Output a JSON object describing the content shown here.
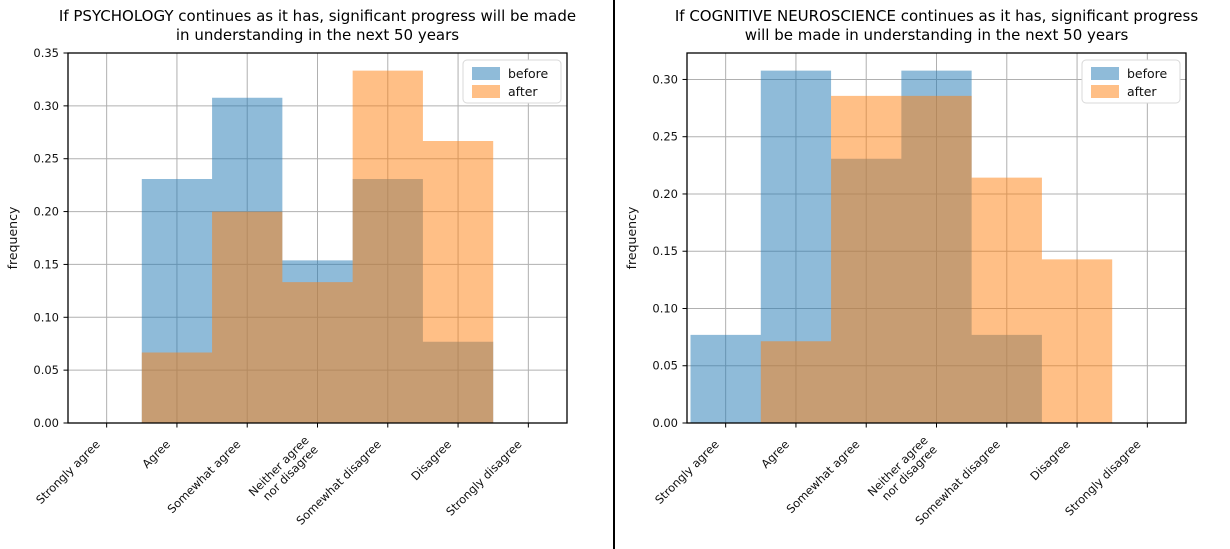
{
  "figure": {
    "background": "#ffffff",
    "divider_color": "#000000",
    "grid_color": "#b0b0b0",
    "frame_color": "#000000",
    "legend_border_color": "#d8d8d8"
  },
  "chart_data": [
    {
      "type": "histogram",
      "title": "If PSYCHOLOGY continues as it has, significant progress will be made in understanding in the next 50 years",
      "title_lines": [
        "If PSYCHOLOGY continues as it has, significant progress will be made",
        "in understanding in the next 50 years"
      ],
      "ylabel": "frequency",
      "xlabel": "",
      "categories": [
        "Strongly agree",
        "Agree",
        "Somewhat agree",
        "Neither agree\nnor disagree",
        "Somewhat disagree",
        "Disagree",
        "Strongly disagree"
      ],
      "series": [
        {
          "name": "before",
          "color": "#1f77b4",
          "fill_alpha": 0.5,
          "values": [
            0,
            0.2308,
            0.3077,
            0.1538,
            0.2308,
            0.0769,
            0
          ]
        },
        {
          "name": "after",
          "color": "#ff7f0e",
          "fill_alpha": 0.5,
          "values": [
            0,
            0.0667,
            0.2,
            0.1333,
            0.3333,
            0.2667,
            0
          ]
        }
      ],
      "ylim": [
        0,
        0.35
      ],
      "yticks": [
        "0.00",
        "0.05",
        "0.10",
        "0.15",
        "0.20",
        "0.25",
        "0.30",
        "0.35"
      ],
      "x_tick_rotation": 45,
      "grid": true,
      "legend": {
        "position": "upper right",
        "entries": [
          "before",
          "after"
        ]
      }
    },
    {
      "type": "histogram",
      "title": "If COGNITIVE NEUROSCIENCE continues as it has, significant progress will be made in understanding in the next 50 years",
      "title_lines": [
        "If COGNITIVE NEUROSCIENCE continues as it has, significant progress",
        "will be made in understanding in the next 50 years"
      ],
      "ylabel": "frequency",
      "xlabel": "",
      "categories": [
        "Strongly agree",
        "Agree",
        "Somewhat agree",
        "Neither agree\nnor disagree",
        "Somewhat disagree",
        "Disagree",
        "Strongly disagree"
      ],
      "series": [
        {
          "name": "before",
          "color": "#1f77b4",
          "fill_alpha": 0.5,
          "values": [
            0.0769,
            0.3077,
            0.2308,
            0.3077,
            0.0769,
            0,
            0
          ]
        },
        {
          "name": "after",
          "color": "#ff7f0e",
          "fill_alpha": 0.5,
          "values": [
            0,
            0.0714,
            0.2857,
            0.2857,
            0.2143,
            0.1429,
            0
          ]
        }
      ],
      "ylim": [
        0,
        0.3231
      ],
      "yticks": [
        "0.00",
        "0.05",
        "0.10",
        "0.15",
        "0.20",
        "0.25",
        "0.30"
      ],
      "x_tick_rotation": 45,
      "grid": true,
      "legend": {
        "position": "upper right",
        "entries": [
          "before",
          "after"
        ]
      }
    }
  ]
}
